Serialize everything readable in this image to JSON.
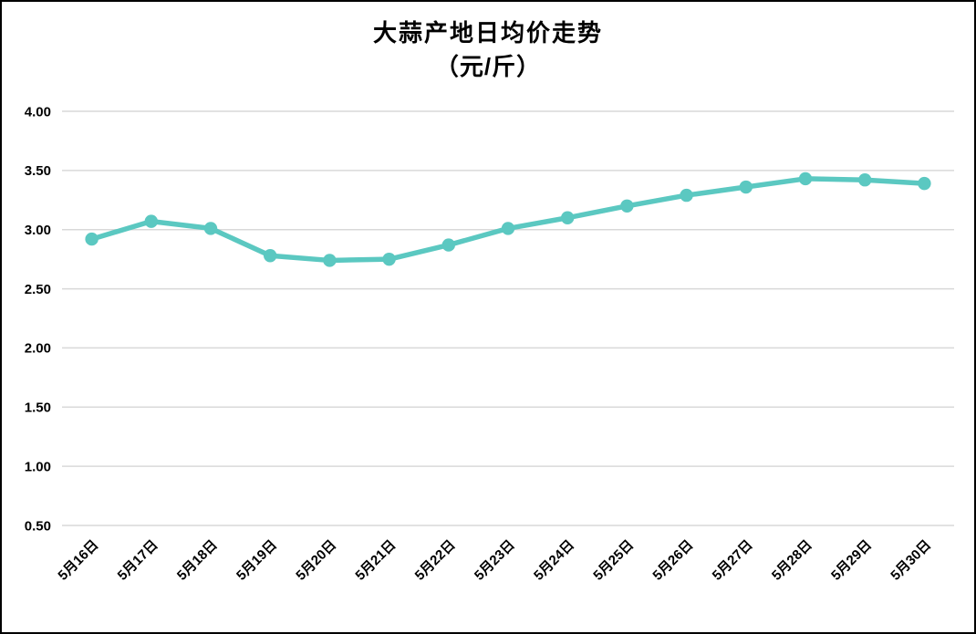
{
  "chart_data": {
    "type": "line",
    "title": "大蒜产地日均价走势",
    "subtitle": "（元/斤）",
    "categories": [
      "5月16日",
      "5月17日",
      "5月18日",
      "5月19日",
      "5月20日",
      "5月21日",
      "5月22日",
      "5月23日",
      "5月24日",
      "5月25日",
      "5月26日",
      "5月27日",
      "5月28日",
      "5月29日",
      "5月30日"
    ],
    "values": [
      2.92,
      3.07,
      3.01,
      2.78,
      2.74,
      2.75,
      2.87,
      3.01,
      3.1,
      3.2,
      3.29,
      3.36,
      3.43,
      3.42,
      3.39
    ],
    "ylim": [
      0.5,
      4.0
    ],
    "yticks": [
      "4.00",
      "3.50",
      "3.00",
      "2.50",
      "2.00",
      "1.50",
      "1.00",
      "0.50"
    ],
    "ytick_values": [
      4.0,
      3.5,
      3.0,
      2.5,
      2.0,
      1.5,
      1.0,
      0.5
    ],
    "grid": "horizontal",
    "legend_position": "none",
    "line_color": "#5BC8C1",
    "marker": "circle",
    "gridline_color": "#D9D9D9",
    "text_color": "#000000",
    "background_color": "#FFFFFF",
    "border_color": "#000000"
  }
}
